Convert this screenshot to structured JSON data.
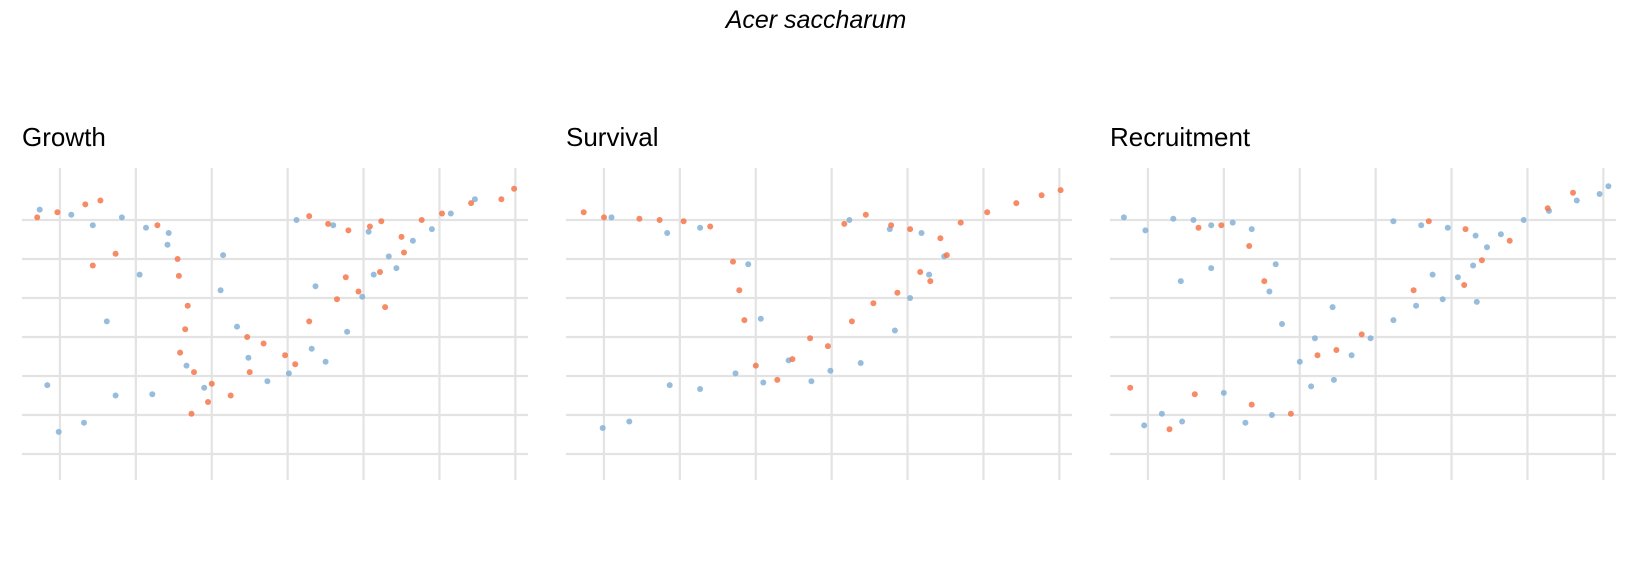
{
  "title": "Acer saccharum",
  "colors": {
    "positive": "#f4774a",
    "negative": "#86b2d6",
    "grid": "#e3e3e3"
  },
  "chart_data": [
    {
      "type": "scatter",
      "title": "Growth",
      "xlabel": "",
      "ylabel": "",
      "grid": true,
      "legend": "none",
      "xlim": [
        -100,
        -60
      ],
      "ylim": [
        28,
        52
      ],
      "grid_x": [
        -97,
        -91,
        -85,
        -79,
        -73,
        -67,
        -61
      ],
      "grid_y": [
        30,
        33,
        36,
        39,
        42,
        45,
        48
      ],
      "series": [
        {
          "color": "#86b2d6",
          "points": [
            [
              -98.6,
              48.8
            ],
            [
              -96.1,
              48.4
            ],
            [
              -94.4,
              47.6
            ],
            [
              -92.1,
              48.2
            ],
            [
              -90.2,
              47.4
            ],
            [
              -88.4,
              47.0
            ],
            [
              -84.3,
              42.6
            ],
            [
              -84.1,
              45.3
            ],
            [
              -83.0,
              39.8
            ],
            [
              -82.1,
              37.4
            ],
            [
              -80.6,
              35.6
            ],
            [
              -78.9,
              36.2
            ],
            [
              -77.1,
              38.1
            ],
            [
              -76.0,
              37.1
            ],
            [
              -74.3,
              39.4
            ],
            [
              -73.1,
              42.1
            ],
            [
              -72.2,
              43.8
            ],
            [
              -71.0,
              45.2
            ],
            [
              -70.4,
              44.3
            ],
            [
              -69.1,
              46.4
            ],
            [
              -67.6,
              47.3
            ],
            [
              -66.1,
              48.5
            ],
            [
              -64.2,
              49.6
            ],
            [
              -78.3,
              48.0
            ],
            [
              -75.4,
              47.6
            ],
            [
              -72.6,
              47.1
            ],
            [
              -98.0,
              35.3
            ],
            [
              -97.1,
              31.7
            ],
            [
              -95.1,
              32.4
            ],
            [
              -92.6,
              34.5
            ],
            [
              -89.7,
              34.6
            ],
            [
              -87.0,
              36.8
            ],
            [
              -85.6,
              35.1
            ],
            [
              -93.3,
              40.2
            ],
            [
              -90.7,
              43.8
            ],
            [
              -88.5,
              46.1
            ],
            [
              -76.8,
              42.9
            ]
          ]
        },
        {
          "color": "#f4774a",
          "points": [
            [
              -98.8,
              48.2
            ],
            [
              -97.2,
              48.6
            ],
            [
              -95.0,
              49.2
            ],
            [
              -93.8,
              49.5
            ],
            [
              -89.3,
              47.6
            ],
            [
              -87.7,
              45.0
            ],
            [
              -87.6,
              43.7
            ],
            [
              -86.9,
              41.4
            ],
            [
              -87.1,
              39.6
            ],
            [
              -86.4,
              36.3
            ],
            [
              -85.0,
              35.4
            ],
            [
              -83.5,
              34.5
            ],
            [
              -82.0,
              36.3
            ],
            [
              -80.9,
              38.5
            ],
            [
              -79.2,
              37.6
            ],
            [
              -78.4,
              36.9
            ],
            [
              -77.3,
              40.2
            ],
            [
              -75.1,
              41.9
            ],
            [
              -73.4,
              42.5
            ],
            [
              -71.7,
              44.0
            ],
            [
              -71.3,
              41.3
            ],
            [
              -70.0,
              46.7
            ],
            [
              -68.4,
              48.0
            ],
            [
              -66.8,
              48.5
            ],
            [
              -64.5,
              49.3
            ],
            [
              -62.1,
              49.6
            ],
            [
              -61.1,
              50.4
            ],
            [
              -77.3,
              48.3
            ],
            [
              -75.8,
              47.7
            ],
            [
              -74.2,
              47.2
            ],
            [
              -72.5,
              47.5
            ],
            [
              -71.6,
              47.9
            ],
            [
              -94.4,
              44.5
            ],
            [
              -92.6,
              45.4
            ],
            [
              -85.3,
              34.0
            ],
            [
              -86.6,
              33.1
            ],
            [
              -87.5,
              37.8
            ],
            [
              -82.2,
              39.0
            ],
            [
              -74.4,
              43.6
            ],
            [
              -69.8,
              45.5
            ]
          ]
        }
      ]
    },
    {
      "type": "scatter",
      "title": "Survival",
      "xlabel": "",
      "ylabel": "",
      "grid": true,
      "legend": "none",
      "xlim": [
        -100,
        -60
      ],
      "ylim": [
        28,
        52
      ],
      "grid_x": [
        -97,
        -91,
        -85,
        -79,
        -73,
        -67,
        -61
      ],
      "grid_y": [
        30,
        33,
        36,
        39,
        42,
        45,
        48
      ],
      "series": [
        {
          "color": "#86b2d6",
          "points": [
            [
              -96.4,
              48.2
            ],
            [
              -92.0,
              47.0
            ],
            [
              -89.4,
              47.4
            ],
            [
              -85.6,
              44.6
            ],
            [
              -84.6,
              40.4
            ],
            [
              -82.4,
              37.2
            ],
            [
              -80.6,
              35.6
            ],
            [
              -79.1,
              36.4
            ],
            [
              -76.7,
              37.0
            ],
            [
              -74.0,
              39.5
            ],
            [
              -72.8,
              42.0
            ],
            [
              -71.3,
              43.8
            ],
            [
              -70.1,
              45.2
            ],
            [
              -77.6,
              48.0
            ],
            [
              -74.4,
              47.3
            ],
            [
              -71.9,
              47.0
            ],
            [
              -97.1,
              32.0
            ],
            [
              -95.0,
              32.5
            ],
            [
              -91.8,
              35.3
            ],
            [
              -89.4,
              35.0
            ],
            [
              -86.6,
              36.2
            ],
            [
              -84.4,
              35.5
            ]
          ]
        },
        {
          "color": "#f4774a",
          "points": [
            [
              -98.6,
              48.6
            ],
            [
              -97.0,
              48.2
            ],
            [
              -94.2,
              48.1
            ],
            [
              -92.6,
              48.0
            ],
            [
              -90.7,
              47.9
            ],
            [
              -88.6,
              47.5
            ],
            [
              -86.8,
              44.8
            ],
            [
              -86.3,
              42.6
            ],
            [
              -85.9,
              40.3
            ],
            [
              -85.0,
              36.8
            ],
            [
              -83.3,
              35.7
            ],
            [
              -82.1,
              37.3
            ],
            [
              -80.7,
              38.9
            ],
            [
              -79.3,
              38.3
            ],
            [
              -77.4,
              40.2
            ],
            [
              -75.7,
              41.6
            ],
            [
              -73.8,
              42.4
            ],
            [
              -72.0,
              44.0
            ],
            [
              -70.4,
              46.6
            ],
            [
              -68.8,
              47.8
            ],
            [
              -66.7,
              48.6
            ],
            [
              -64.4,
              49.3
            ],
            [
              -62.4,
              49.9
            ],
            [
              -60.9,
              50.3
            ],
            [
              -78.0,
              47.7
            ],
            [
              -76.3,
              48.4
            ],
            [
              -74.3,
              47.6
            ],
            [
              -72.8,
              47.3
            ],
            [
              -69.9,
              45.3
            ],
            [
              -71.2,
              43.3
            ]
          ]
        }
      ]
    },
    {
      "type": "scatter",
      "title": "Recruitment",
      "xlabel": "",
      "ylabel": "",
      "grid": true,
      "legend": "none",
      "xlim": [
        -100,
        -60
      ],
      "ylim": [
        28,
        52
      ],
      "grid_x": [
        -97,
        -91,
        -85,
        -79,
        -73,
        -67,
        -61
      ],
      "grid_y": [
        30,
        33,
        36,
        39,
        42,
        45,
        48
      ],
      "series": [
        {
          "color": "#86b2d6",
          "points": [
            [
              -98.9,
              48.2
            ],
            [
              -97.2,
              47.2
            ],
            [
              -95.0,
              48.1
            ],
            [
              -93.4,
              48.0
            ],
            [
              -92.0,
              47.6
            ],
            [
              -90.3,
              47.8
            ],
            [
              -88.8,
              47.3
            ],
            [
              -86.9,
              44.6
            ],
            [
              -87.4,
              42.5
            ],
            [
              -86.4,
              40.0
            ],
            [
              -85.0,
              37.1
            ],
            [
              -84.1,
              35.2
            ],
            [
              -82.3,
              35.7
            ],
            [
              -80.9,
              37.6
            ],
            [
              -79.4,
              38.9
            ],
            [
              -77.6,
              40.3
            ],
            [
              -75.8,
              41.4
            ],
            [
              -73.7,
              41.9
            ],
            [
              -72.5,
              43.6
            ],
            [
              -71.3,
              44.5
            ],
            [
              -70.2,
              45.9
            ],
            [
              -69.1,
              46.9
            ],
            [
              -67.3,
              48.0
            ],
            [
              -65.3,
              48.7
            ],
            [
              -63.1,
              49.5
            ],
            [
              -61.3,
              50.0
            ],
            [
              -60.6,
              50.6
            ],
            [
              -77.6,
              47.9
            ],
            [
              -75.4,
              47.6
            ],
            [
              -73.3,
              47.4
            ],
            [
              -71.1,
              46.8
            ],
            [
              -97.3,
              32.2
            ],
            [
              -95.9,
              33.1
            ],
            [
              -94.3,
              32.5
            ],
            [
              -91.0,
              34.7
            ],
            [
              -89.3,
              32.4
            ],
            [
              -87.2,
              33.0
            ],
            [
              -94.4,
              43.3
            ],
            [
              -92.0,
              44.3
            ],
            [
              -83.8,
              38.9
            ],
            [
              -82.4,
              41.3
            ],
            [
              -71.0,
              41.7
            ],
            [
              -74.5,
              43.8
            ]
          ]
        },
        {
          "color": "#f4774a",
          "points": [
            [
              -93.0,
              47.4
            ],
            [
              -91.2,
              47.6
            ],
            [
              -89.0,
              46.0
            ],
            [
              -87.8,
              43.3
            ],
            [
              -83.6,
              37.6
            ],
            [
              -82.1,
              38.0
            ],
            [
              -80.1,
              39.2
            ],
            [
              -76.0,
              42.6
            ],
            [
              -72.0,
              43.0
            ],
            [
              -70.6,
              44.9
            ],
            [
              -68.4,
              46.4
            ],
            [
              -65.4,
              48.9
            ],
            [
              -63.4,
              50.1
            ],
            [
              -74.8,
              47.9
            ],
            [
              -71.9,
              47.3
            ],
            [
              -98.4,
              35.1
            ],
            [
              -95.3,
              31.9
            ],
            [
              -93.3,
              34.6
            ],
            [
              -88.8,
              33.8
            ],
            [
              -85.7,
              33.1
            ]
          ]
        }
      ]
    }
  ]
}
